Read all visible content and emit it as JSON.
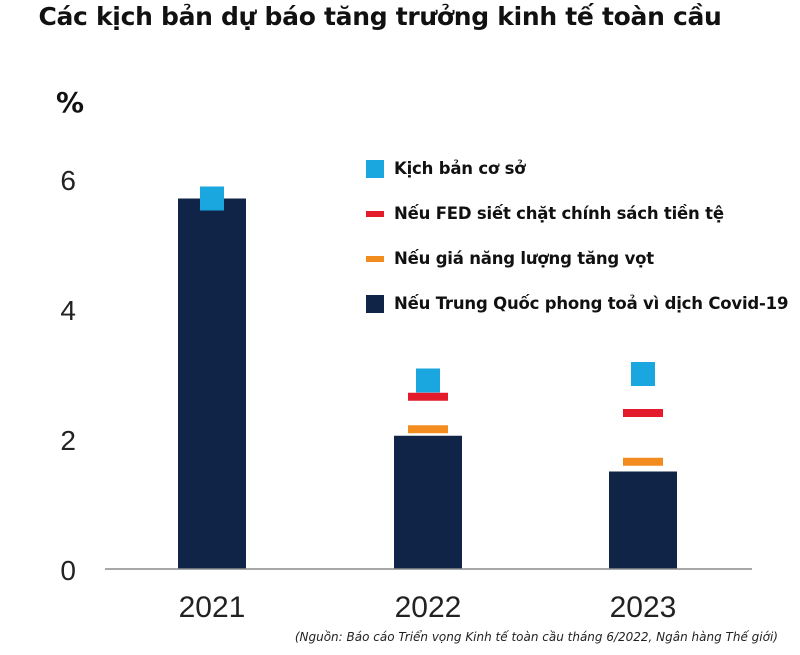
{
  "title": "Các kịch bản dự báo tăng trưởng kinh tế toàn cầu",
  "source_note": "(Nguồn: Báo cáo Triển vọng Kinh tế toàn cầu tháng 6/2022, Ngân hàng Thế giới)",
  "chart_data": {
    "type": "bar",
    "title": "Các kịch bản dự báo tăng trưởng kinh tế toàn cầu",
    "ylabel": "%",
    "xlabel": "",
    "categories": [
      "2021",
      "2022",
      "2023"
    ],
    "ylim": [
      0,
      6.6
    ],
    "yticks": [
      0,
      2,
      4,
      6
    ],
    "grid": false,
    "legend_position": "top-right",
    "series": [
      {
        "name": "Kịch bản cơ sở",
        "marker": "square",
        "color": "#1aa7e0",
        "values": [
          5.7,
          2.9,
          3.0
        ]
      },
      {
        "name": "Nếu FED siết chặt chính sách tiền tệ",
        "marker": "dash",
        "color": "#e31b2a",
        "values": [
          null,
          2.65,
          2.4
        ]
      },
      {
        "name": "Nếu giá năng lượng tăng vọt",
        "marker": "dash",
        "color": "#f28c1f",
        "values": [
          null,
          2.15,
          1.65
        ]
      },
      {
        "name": "Nếu Trung Quốc phong toả vì dịch Covid-19",
        "marker": "bar",
        "color": "#0f2446",
        "values": [
          5.7,
          2.05,
          1.5
        ]
      }
    ]
  }
}
